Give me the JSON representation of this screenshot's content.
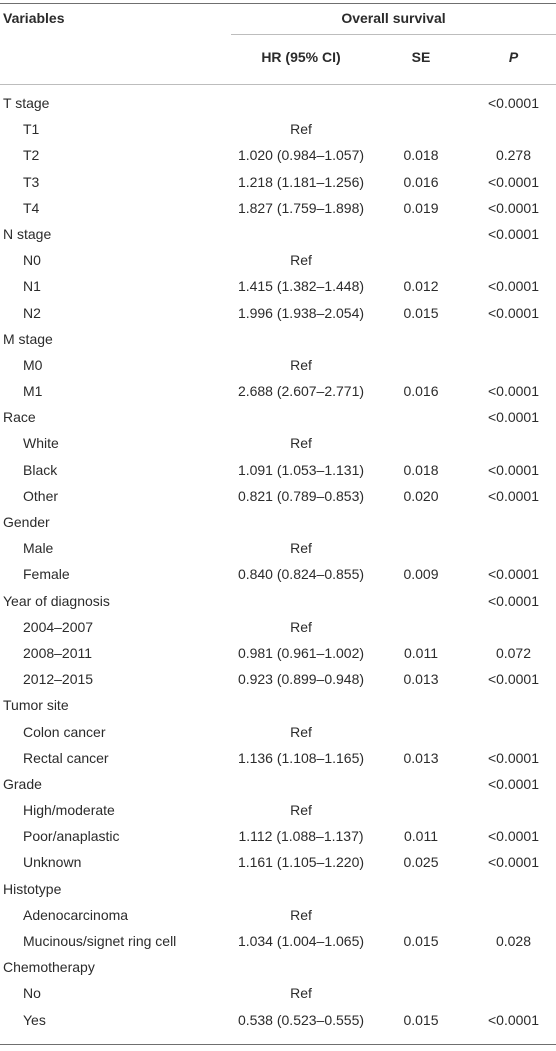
{
  "header": {
    "variables": "Variables",
    "group": "Overall survival",
    "hr": "HR (95% CI)",
    "se": "SE",
    "p": "P"
  },
  "rows": [
    {
      "variable": "T stage",
      "level": 0,
      "hr": "",
      "se": "",
      "p": "<0.0001"
    },
    {
      "variable": "T1",
      "level": 1,
      "hr": "Ref",
      "se": "",
      "p": ""
    },
    {
      "variable": "T2",
      "level": 1,
      "hr": "1.020 (0.984–1.057)",
      "se": "0.018",
      "p": "0.278"
    },
    {
      "variable": "T3",
      "level": 1,
      "hr": "1.218 (1.181–1.256)",
      "se": "0.016",
      "p": "<0.0001"
    },
    {
      "variable": "T4",
      "level": 1,
      "hr": "1.827 (1.759–1.898)",
      "se": "0.019",
      "p": "<0.0001"
    },
    {
      "variable": "N stage",
      "level": 0,
      "hr": "",
      "se": "",
      "p": "<0.0001"
    },
    {
      "variable": "N0",
      "level": 1,
      "hr": "Ref",
      "se": "",
      "p": ""
    },
    {
      "variable": "N1",
      "level": 1,
      "hr": "1.415 (1.382–1.448)",
      "se": "0.012",
      "p": "<0.0001"
    },
    {
      "variable": "N2",
      "level": 1,
      "hr": "1.996 (1.938–2.054)",
      "se": "0.015",
      "p": "<0.0001"
    },
    {
      "variable": "M stage",
      "level": 0,
      "hr": "",
      "se": "",
      "p": ""
    },
    {
      "variable": "M0",
      "level": 1,
      "hr": "Ref",
      "se": "",
      "p": ""
    },
    {
      "variable": "M1",
      "level": 1,
      "hr": "2.688 (2.607–2.771)",
      "se": "0.016",
      "p": "<0.0001"
    },
    {
      "variable": "Race",
      "level": 0,
      "hr": "",
      "se": "",
      "p": "<0.0001"
    },
    {
      "variable": "White",
      "level": 1,
      "hr": "Ref",
      "se": "",
      "p": ""
    },
    {
      "variable": "Black",
      "level": 1,
      "hr": "1.091 (1.053–1.131)",
      "se": "0.018",
      "p": "<0.0001"
    },
    {
      "variable": "Other",
      "level": 1,
      "hr": "0.821 (0.789–0.853)",
      "se": "0.020",
      "p": "<0.0001"
    },
    {
      "variable": "Gender",
      "level": 0,
      "hr": "",
      "se": "",
      "p": ""
    },
    {
      "variable": "Male",
      "level": 1,
      "hr": "Ref",
      "se": "",
      "p": ""
    },
    {
      "variable": "Female",
      "level": 1,
      "hr": "0.840 (0.824–0.855)",
      "se": "0.009",
      "p": "<0.0001"
    },
    {
      "variable": "Year of diagnosis",
      "level": 0,
      "hr": "",
      "se": "",
      "p": "<0.0001"
    },
    {
      "variable": "2004–2007",
      "level": 1,
      "hr": "Ref",
      "se": "",
      "p": ""
    },
    {
      "variable": "2008–2011",
      "level": 1,
      "hr": "0.981 (0.961–1.002)",
      "se": "0.011",
      "p": "0.072"
    },
    {
      "variable": "2012–2015",
      "level": 1,
      "hr": "0.923 (0.899–0.948)",
      "se": "0.013",
      "p": "<0.0001"
    },
    {
      "variable": "Tumor site",
      "level": 0,
      "hr": "",
      "se": "",
      "p": ""
    },
    {
      "variable": "Colon cancer",
      "level": 1,
      "hr": "Ref",
      "se": "",
      "p": ""
    },
    {
      "variable": "Rectal cancer",
      "level": 1,
      "hr": "1.136 (1.108–1.165)",
      "se": "0.013",
      "p": "<0.0001"
    },
    {
      "variable": "Grade",
      "level": 0,
      "hr": "",
      "se": "",
      "p": "<0.0001"
    },
    {
      "variable": "High/moderate",
      "level": 1,
      "hr": "Ref",
      "se": "",
      "p": ""
    },
    {
      "variable": "Poor/anaplastic",
      "level": 1,
      "hr": "1.112 (1.088–1.137)",
      "se": "0.011",
      "p": "<0.0001"
    },
    {
      "variable": "Unknown",
      "level": 1,
      "hr": "1.161 (1.105–1.220)",
      "se": "0.025",
      "p": "<0.0001"
    },
    {
      "variable": "Histotype",
      "level": 0,
      "hr": "",
      "se": "",
      "p": ""
    },
    {
      "variable": "Adenocarcinoma",
      "level": 1,
      "hr": "Ref",
      "se": "",
      "p": ""
    },
    {
      "variable": "Mucinous/signet ring cell",
      "level": 1,
      "hr": "1.034 (1.004–1.065)",
      "se": "0.015",
      "p": "0.028"
    },
    {
      "variable": "Chemotherapy",
      "level": 0,
      "hr": "",
      "se": "",
      "p": ""
    },
    {
      "variable": "No",
      "level": 1,
      "hr": "Ref",
      "se": "",
      "p": ""
    },
    {
      "variable": "Yes",
      "level": 1,
      "hr": "0.538 (0.523–0.555)",
      "se": "0.015",
      "p": "<0.0001"
    }
  ]
}
